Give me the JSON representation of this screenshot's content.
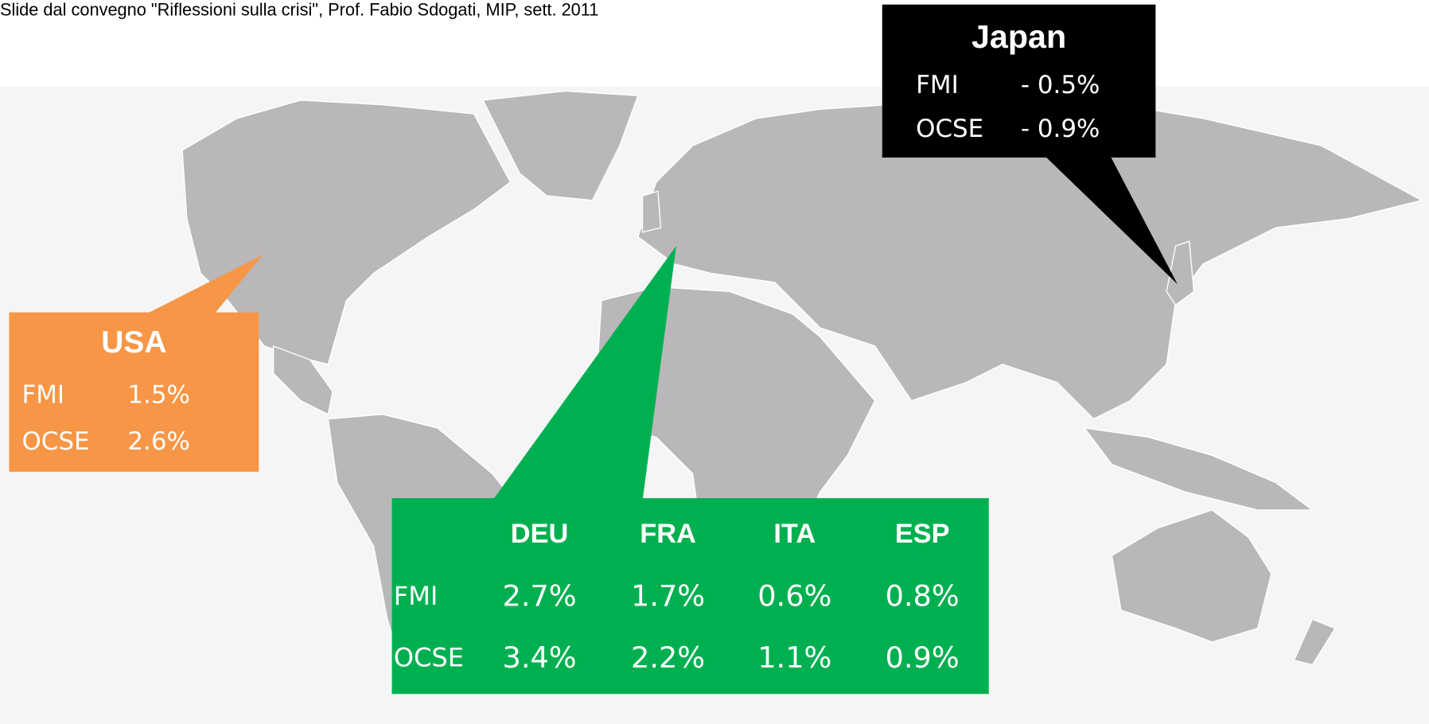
{
  "caption": "Slide dal convegno \"Riflessioni sulla crisi\", Prof. Fabio Sdogati, MIP, sett. 2011",
  "japan": {
    "title": "Japan",
    "rows": [
      [
        "FMI",
        "- 0.5%"
      ],
      [
        "OCSE",
        "- 0.9%"
      ]
    ]
  },
  "usa": {
    "title": "USA",
    "rows": [
      [
        "FMI",
        "1.5%"
      ],
      [
        "OCSE",
        "2.6%"
      ]
    ]
  },
  "europe": {
    "columns": [
      "DEU",
      "FRA",
      "ITA",
      "ESP"
    ],
    "rows": [
      {
        "label": "FMI",
        "values": [
          "2.7%",
          "1.7%",
          "0.6%",
          "0.8%"
        ]
      },
      {
        "label": "OCSE",
        "values": [
          "3.4%",
          "2.2%",
          "1.1%",
          "0.9%"
        ]
      }
    ]
  }
}
